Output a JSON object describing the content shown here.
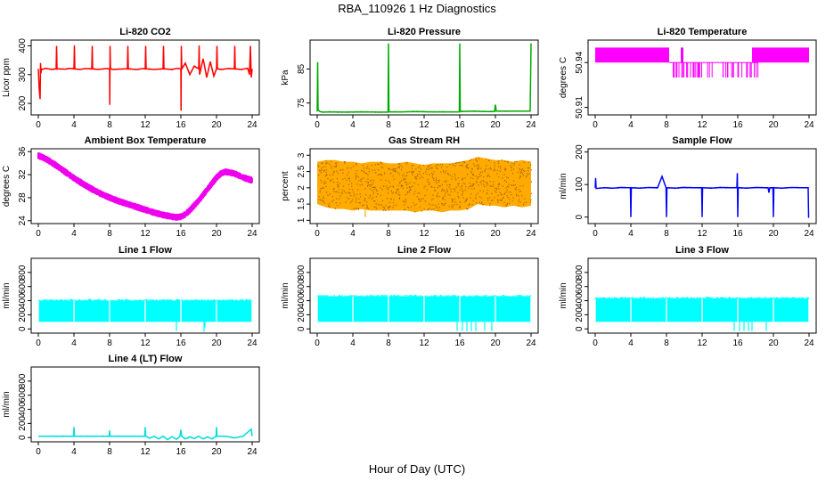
{
  "figure": {
    "title": "RBA_110926  1 Hz Diagnostics",
    "xlabel": "Hour of Day (UTC)"
  },
  "chart_data": [
    {
      "type": "line",
      "title": "Li-820 CO2",
      "ylabel": "Licor ppm",
      "color": "#ff0000",
      "xlim": [
        0,
        24
      ],
      "xticks": [
        0,
        4,
        8,
        12,
        16,
        20,
        24
      ],
      "ylim": [
        160,
        420
      ],
      "yticks": [
        200,
        300,
        400
      ],
      "series": [
        {
          "x": [
            0,
            0.1,
            0.2,
            0.25,
            0.3,
            0.35,
            0.45,
            0.8,
            1.5,
            2.0,
            2.05,
            2.1,
            3.0,
            3.5,
            4.0,
            4.05,
            4.1,
            4.6,
            5.3,
            6.0,
            6.05,
            6.1,
            6.7,
            7.6,
            8.0,
            8.02,
            8.05,
            8.1,
            8.4,
            9.0,
            10.0,
            10.05,
            10.1,
            11.0,
            11.8,
            12.0,
            12.05,
            12.1,
            13.0,
            14.0,
            14.05,
            14.1,
            15.0,
            15.6,
            16.0,
            16.02,
            16.05,
            16.1,
            16.5,
            17.0,
            17.5,
            18.0,
            18.05,
            18.1,
            18.5,
            18.9,
            19.3,
            19.7,
            20.0,
            20.05,
            20.1,
            20.6,
            21.2,
            22.0,
            22.05,
            22.1,
            22.8,
            23.5,
            23.7,
            23.8,
            23.9,
            24.0
          ],
          "y": [
            320,
            250,
            215,
            340,
            305,
            320,
            318,
            322,
            318,
            320,
            400,
            320,
            319,
            322,
            320,
            400,
            320,
            318,
            321,
            320,
            400,
            320,
            318,
            321,
            320,
            195,
            400,
            320,
            318,
            319,
            320,
            400,
            320,
            318,
            321,
            320,
            400,
            320,
            318,
            320,
            400,
            320,
            318,
            322,
            320,
            175,
            400,
            320,
            340,
            300,
            330,
            320,
            400,
            300,
            355,
            290,
            345,
            295,
            320,
            400,
            320,
            318,
            321,
            320,
            400,
            320,
            318,
            322,
            300,
            400,
            290,
            320
          ]
        }
      ]
    },
    {
      "type": "line",
      "title": "Li-820 Pressure",
      "ylabel": "kPa",
      "color": "#00aa00",
      "xlim": [
        0,
        24
      ],
      "xticks": [
        0,
        4,
        8,
        12,
        16,
        20,
        24
      ],
      "ylim": [
        71.5,
        93.5
      ],
      "yticks": [
        75,
        85
      ],
      "series": [
        {
          "x": [
            0,
            0.05,
            0.1,
            0.3,
            0.6,
            1.5,
            3.0,
            5.0,
            7.0,
            7.95,
            8.0,
            8.05,
            9.5,
            11.0,
            13.0,
            15.0,
            15.95,
            16.0,
            16.05,
            17.5,
            19.0,
            19.9,
            20.0,
            20.1,
            21.5,
            23.0,
            23.9,
            24.0
          ],
          "y": [
            72.5,
            87,
            73,
            72.5,
            72.3,
            72.4,
            72.3,
            72.4,
            72.3,
            72.3,
            92.5,
            72.4,
            72.4,
            72.5,
            72.4,
            72.4,
            72.4,
            92.5,
            72.5,
            72.6,
            72.5,
            72.5,
            74.5,
            72.6,
            72.6,
            72.6,
            72.6,
            92.5
          ]
        }
      ]
    },
    {
      "type": "line",
      "title": "Li-820 Temperature",
      "ylabel": "degrees C",
      "color": "#ff00ff",
      "xlim": [
        0,
        24
      ],
      "xticks": [
        0,
        4,
        8,
        12,
        16,
        20,
        24
      ],
      "ylim": [
        50.905,
        50.955
      ],
      "yticks": [
        50.91,
        50.94
      ],
      "band_levels": [
        50.95,
        50.94,
        50.93
      ],
      "segments": [
        {
          "x0": 0.0,
          "x1": 6.0,
          "levels": [
            50.94,
            50.95
          ]
        },
        {
          "x0": 6.0,
          "x1": 8.3,
          "levels": [
            50.94,
            50.95
          ]
        },
        {
          "x0": 8.3,
          "x1": 9.6,
          "levels": [
            50.93,
            50.94
          ]
        },
        {
          "x0": 9.6,
          "x1": 9.9,
          "levels": [
            50.93,
            50.94,
            50.95
          ]
        },
        {
          "x0": 9.9,
          "x1": 17.6,
          "levels": [
            50.93,
            50.94
          ]
        },
        {
          "x0": 17.6,
          "x1": 18.3,
          "levels": [
            50.93,
            50.94,
            50.95
          ]
        },
        {
          "x0": 18.3,
          "x1": 24.0,
          "levels": [
            50.94,
            50.95
          ]
        }
      ]
    },
    {
      "type": "scatter",
      "title": "Ambient Box Temperature",
      "ylabel": "degrees C",
      "color": "#ee00ee",
      "xlim": [
        0,
        24
      ],
      "xticks": [
        0,
        4,
        8,
        12,
        16,
        20,
        24
      ],
      "ylim": [
        23.5,
        36.5
      ],
      "yticks": [
        24,
        28,
        32,
        36
      ],
      "spread": 0.6,
      "series": [
        {
          "x": [
            0,
            0.5,
            1,
            2,
            3,
            4,
            5,
            6,
            7,
            8,
            9,
            10,
            11,
            12,
            13,
            14,
            15,
            15.5,
            16,
            16.5,
            17,
            18,
            19,
            19.5,
            20,
            20.5,
            21,
            22,
            23,
            24
          ],
          "y": [
            35.3,
            35.0,
            34.6,
            33.6,
            32.5,
            31.4,
            30.4,
            29.5,
            28.7,
            28.0,
            27.4,
            26.9,
            26.4,
            25.9,
            25.4,
            25.0,
            24.7,
            24.6,
            24.7,
            25.1,
            25.8,
            27.5,
            29.5,
            30.5,
            31.5,
            32.2,
            32.5,
            32.2,
            31.5,
            31.0
          ]
        }
      ]
    },
    {
      "type": "line",
      "title": "Gas Stream RH",
      "ylabel": "percent",
      "color": "#cc8800",
      "xlim": [
        0,
        24
      ],
      "xticks": [
        0,
        4,
        8,
        12,
        16,
        20,
        24
      ],
      "ylim": [
        0.9,
        3.2
      ],
      "yticks": [
        1.0,
        1.5,
        2.0,
        2.5,
        3.0
      ],
      "envelope": {
        "x": [
          0,
          1,
          2,
          3,
          4,
          5,
          6,
          7,
          8,
          9,
          10,
          11,
          12,
          13,
          14,
          15,
          16,
          17,
          18,
          19,
          20,
          21,
          22,
          23,
          24
        ],
        "upper": [
          2.8,
          2.85,
          2.85,
          2.8,
          2.8,
          2.75,
          2.8,
          2.8,
          2.75,
          2.75,
          2.8,
          2.75,
          2.7,
          2.75,
          2.75,
          2.75,
          2.8,
          2.85,
          2.95,
          2.9,
          2.85,
          2.85,
          2.8,
          2.85,
          2.8
        ],
        "lower": [
          1.5,
          1.4,
          1.35,
          1.35,
          1.3,
          1.35,
          1.3,
          1.3,
          1.3,
          1.3,
          1.3,
          1.25,
          1.3,
          1.3,
          1.25,
          1.3,
          1.3,
          1.35,
          1.5,
          1.45,
          1.45,
          1.4,
          1.45,
          1.4,
          1.45
        ],
        "min_spike": {
          "x": 5.4,
          "y": 1.1
        }
      }
    },
    {
      "type": "line",
      "title": "Sample Flow",
      "ylabel": "ml/min",
      "color": "#0000ff",
      "xlim": [
        0,
        24
      ],
      "xticks": [
        0,
        4,
        8,
        12,
        16,
        20,
        24
      ],
      "ylim": [
        -20,
        210
      ],
      "yticks": [
        0,
        100,
        200
      ],
      "series": [
        {
          "x": [
            0,
            0.05,
            0.1,
            1,
            2,
            3,
            3.95,
            4.0,
            4.05,
            5,
            6,
            7,
            7.5,
            7.95,
            8.0,
            8.05,
            9,
            10,
            11,
            11.95,
            12.0,
            12.05,
            13,
            14,
            15,
            15.9,
            15.95,
            16.0,
            16.05,
            17,
            18,
            19,
            19.4,
            19.5,
            19.6,
            19.95,
            20.0,
            20.05,
            21,
            22,
            23,
            23.9,
            23.95,
            24.0
          ],
          "y": [
            90,
            120,
            88,
            90,
            89,
            91,
            90,
            0,
            90,
            89,
            91,
            90,
            125,
            90,
            0,
            90,
            89,
            91,
            90,
            90,
            0,
            90,
            89,
            91,
            90,
            90,
            135,
            0,
            90,
            89,
            91,
            90,
            90,
            75,
            90,
            90,
            0,
            90,
            89,
            91,
            90,
            90,
            0,
            0
          ]
        }
      ]
    },
    {
      "type": "line",
      "title": "Line 1 Flow",
      "ylabel": "ml/min",
      "color": "#00ffff",
      "xlim": [
        0,
        24
      ],
      "xticks": [
        0,
        4,
        8,
        12,
        16,
        20,
        24
      ],
      "ylim": [
        -60,
        1000
      ],
      "yticks": [
        0,
        200,
        400,
        600,
        800
      ],
      "band": {
        "upper": 400,
        "lower": 100
      },
      "dips": [
        {
          "x": 15.5,
          "y": -30
        },
        {
          "x": 18.6,
          "y": -40
        },
        {
          "x": 18.7,
          "y": 20
        }
      ]
    },
    {
      "type": "line",
      "title": "Line 2 Flow",
      "ylabel": "ml/min",
      "color": "#00ffff",
      "xlim": [
        0,
        24
      ],
      "xticks": [
        0,
        4,
        8,
        12,
        16,
        20,
        24
      ],
      "ylim": [
        -60,
        1000
      ],
      "yticks": [
        0,
        200,
        400,
        600,
        800
      ],
      "band": {
        "upper": 460,
        "lower": 100
      },
      "dips": [
        {
          "x": 15.7,
          "y": -30
        },
        {
          "x": 16.3,
          "y": -30
        },
        {
          "x": 16.8,
          "y": -30
        },
        {
          "x": 17.3,
          "y": -30
        },
        {
          "x": 17.8,
          "y": -30
        },
        {
          "x": 18.8,
          "y": -30
        },
        {
          "x": 19.6,
          "y": -30
        }
      ]
    },
    {
      "type": "line",
      "title": "Line 3 Flow",
      "ylabel": "ml/min",
      "color": "#00ffff",
      "xlim": [
        0,
        24
      ],
      "xticks": [
        0,
        4,
        8,
        12,
        16,
        20,
        24
      ],
      "ylim": [
        -60,
        1000
      ],
      "yticks": [
        0,
        200,
        400,
        600,
        800
      ],
      "band": {
        "upper": 430,
        "lower": 100
      },
      "dips": [
        {
          "x": 15.6,
          "y": -30
        },
        {
          "x": 16.2,
          "y": -30
        },
        {
          "x": 16.7,
          "y": -30
        },
        {
          "x": 17.2,
          "y": -30
        },
        {
          "x": 17.6,
          "y": -30
        },
        {
          "x": 19.2,
          "y": -30
        }
      ]
    },
    {
      "type": "line",
      "title": "Line 4 (LT) Flow",
      "ylabel": "ml/min",
      "color": "#00dddd",
      "xlim": [
        0,
        24
      ],
      "xticks": [
        0,
        4,
        8,
        12,
        16,
        20,
        24
      ],
      "ylim": [
        -60,
        1000
      ],
      "yticks": [
        0,
        200,
        400,
        600,
        800
      ],
      "series": [
        {
          "x": [
            0,
            2,
            3.95,
            4.0,
            4.05,
            7.95,
            8.0,
            8.05,
            11.95,
            12.0,
            12.05,
            12.5,
            13.0,
            13.5,
            14.0,
            14.5,
            15.0,
            15.5,
            15.9,
            16.0,
            16.1,
            16.5,
            17.0,
            17.5,
            18.0,
            18.5,
            19.0,
            19.5,
            19.95,
            20.0,
            20.05,
            21.0,
            22.0,
            23.0,
            23.9,
            24.0
          ],
          "y": [
            20,
            20,
            20,
            150,
            20,
            20,
            100,
            20,
            20,
            150,
            20,
            -10,
            20,
            -20,
            20,
            -30,
            15,
            -25,
            20,
            110,
            20,
            -20,
            10,
            -15,
            20,
            -20,
            10,
            -20,
            20,
            150,
            20,
            20,
            -5,
            20,
            120,
            20
          ]
        }
      ]
    }
  ]
}
